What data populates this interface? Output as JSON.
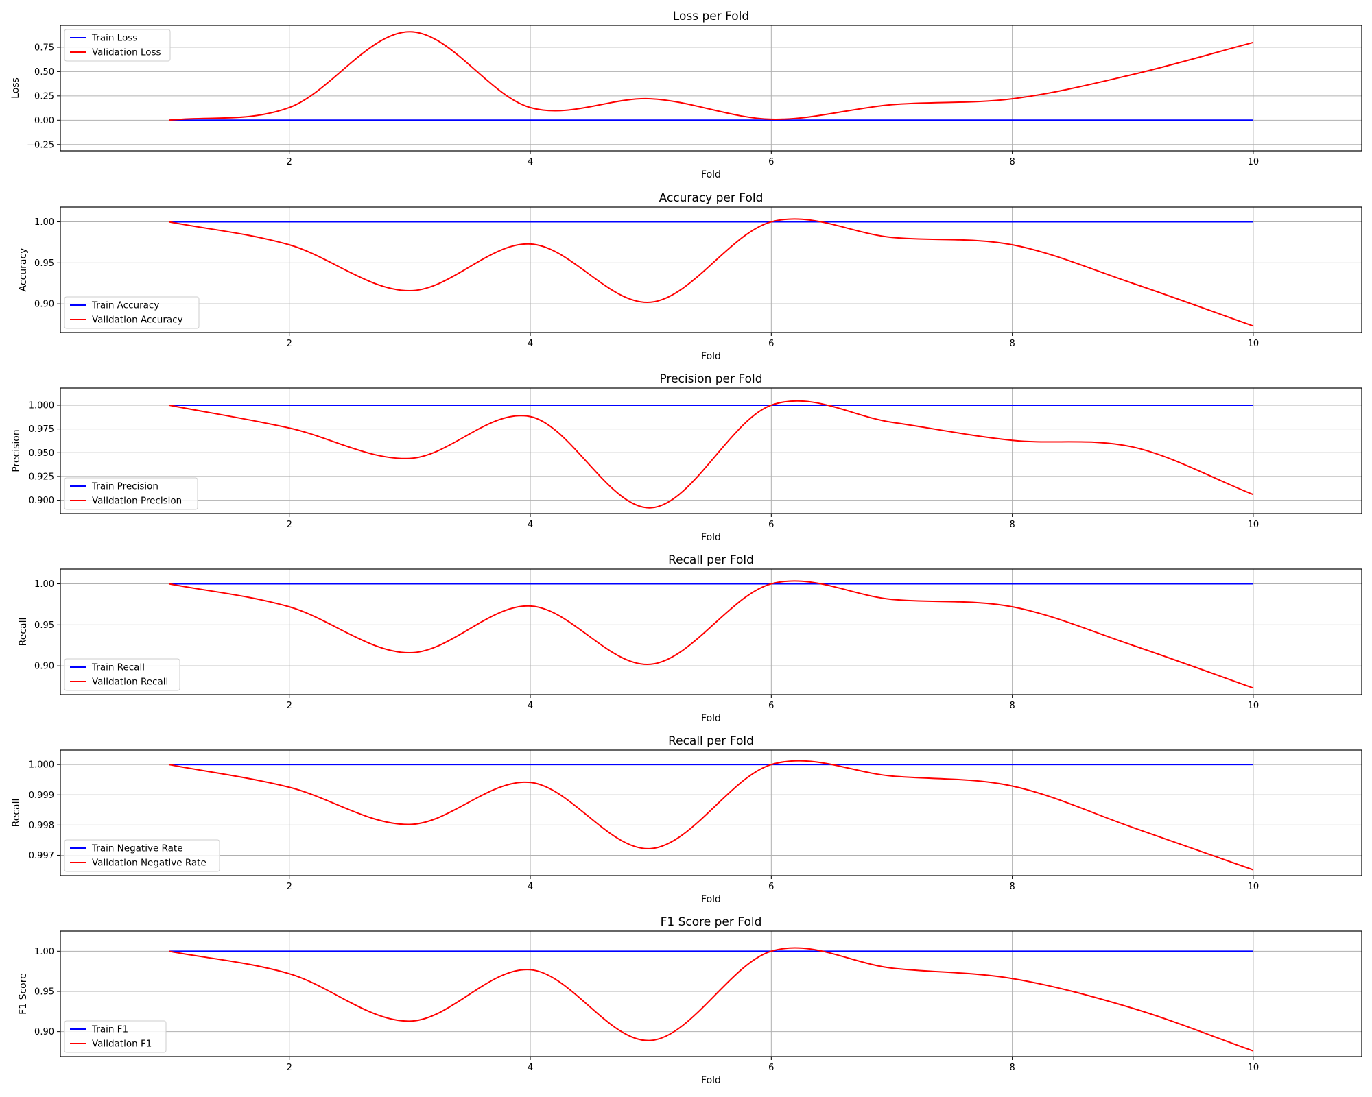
{
  "figure": {
    "colors": {
      "train": "#0000ff",
      "validation": "#ff0000",
      "grid": "#b0b0b0",
      "frame": "#000000"
    }
  },
  "chart_data": [
    {
      "type": "line",
      "title": "Loss per Fold",
      "xlabel": "Fold",
      "ylabel": "Loss",
      "xlim": [
        0.1,
        10.9
      ],
      "ylim": [
        -0.315,
        0.975
      ],
      "xticks": [
        2,
        4,
        6,
        8,
        10
      ],
      "xtick_labels": [
        "2",
        "4",
        "6",
        "8",
        "10"
      ],
      "yticks": [
        -0.25,
        0,
        0.25,
        0.5,
        0.75
      ],
      "ytick_labels": [
        "−0.25",
        "0.00",
        "0.25",
        "0.50",
        "0.75"
      ],
      "grid": true,
      "legend_position": "upper left",
      "x": [
        1,
        2,
        3,
        4,
        5,
        6,
        7,
        8,
        9,
        10
      ],
      "series": [
        {
          "name": "Train Loss",
          "color": "#0000ff",
          "values": [
            0,
            0,
            0,
            0,
            0,
            0,
            0,
            0,
            0,
            0
          ]
        },
        {
          "name": "Validation Loss",
          "color": "#ff0000",
          "values": [
            0.0,
            0.13,
            0.91,
            0.13,
            0.22,
            0.01,
            0.16,
            0.22,
            0.47,
            0.8
          ]
        }
      ]
    },
    {
      "type": "line",
      "title": "Accuracy per Fold",
      "xlabel": "Fold",
      "ylabel": "Accuracy",
      "xlim": [
        0.1,
        10.9
      ],
      "ylim": [
        0.865,
        1.018
      ],
      "xticks": [
        2,
        4,
        6,
        8,
        10
      ],
      "xtick_labels": [
        "2",
        "4",
        "6",
        "8",
        "10"
      ],
      "yticks": [
        0.9,
        0.95,
        1.0
      ],
      "ytick_labels": [
        "0.90",
        "0.95",
        "1.00"
      ],
      "grid": true,
      "legend_position": "lower left",
      "x": [
        1,
        2,
        3,
        4,
        5,
        6,
        7,
        8,
        9,
        10
      ],
      "series": [
        {
          "name": "Train Accuracy",
          "color": "#0000ff",
          "values": [
            1,
            1,
            1,
            1,
            1,
            1,
            1,
            1,
            1,
            1
          ]
        },
        {
          "name": "Validation Accuracy",
          "color": "#ff0000",
          "values": [
            1.0,
            0.972,
            0.916,
            0.973,
            0.902,
            1.0,
            0.981,
            0.972,
            0.925,
            0.873
          ]
        }
      ]
    },
    {
      "type": "line",
      "title": "Precision per Fold",
      "xlabel": "Fold",
      "ylabel": "Precision",
      "xlim": [
        0.1,
        10.9
      ],
      "ylim": [
        0.886,
        1.018
      ],
      "xticks": [
        2,
        4,
        6,
        8,
        10
      ],
      "xtick_labels": [
        "2",
        "4",
        "6",
        "8",
        "10"
      ],
      "yticks": [
        0.9,
        0.925,
        0.95,
        0.975,
        1.0
      ],
      "ytick_labels": [
        "0.900",
        "0.925",
        "0.950",
        "0.975",
        "1.000"
      ],
      "grid": true,
      "legend_position": "lower left",
      "x": [
        1,
        2,
        3,
        4,
        5,
        6,
        7,
        8,
        9,
        10
      ],
      "series": [
        {
          "name": "Train Precision",
          "color": "#0000ff",
          "values": [
            1,
            1,
            1,
            1,
            1,
            1,
            1,
            1,
            1,
            1
          ]
        },
        {
          "name": "Validation Precision",
          "color": "#ff0000",
          "values": [
            1.0,
            0.976,
            0.944,
            0.988,
            0.892,
            1.0,
            0.982,
            0.963,
            0.956,
            0.906
          ]
        }
      ]
    },
    {
      "type": "line",
      "title": "Recall per Fold",
      "xlabel": "Fold",
      "ylabel": "Recall",
      "xlim": [
        0.1,
        10.9
      ],
      "ylim": [
        0.865,
        1.018
      ],
      "xticks": [
        2,
        4,
        6,
        8,
        10
      ],
      "xtick_labels": [
        "2",
        "4",
        "6",
        "8",
        "10"
      ],
      "yticks": [
        0.9,
        0.95,
        1.0
      ],
      "ytick_labels": [
        "0.90",
        "0.95",
        "1.00"
      ],
      "grid": true,
      "legend_position": "lower left",
      "x": [
        1,
        2,
        3,
        4,
        5,
        6,
        7,
        8,
        9,
        10
      ],
      "series": [
        {
          "name": "Train Recall",
          "color": "#0000ff",
          "values": [
            1,
            1,
            1,
            1,
            1,
            1,
            1,
            1,
            1,
            1
          ]
        },
        {
          "name": "Validation Recall",
          "color": "#ff0000",
          "values": [
            1.0,
            0.972,
            0.916,
            0.973,
            0.902,
            1.0,
            0.981,
            0.972,
            0.925,
            0.873
          ]
        }
      ]
    },
    {
      "type": "line",
      "title": "Recall per Fold",
      "xlabel": "Fold",
      "ylabel": "Recall",
      "xlim": [
        0.1,
        10.9
      ],
      "ylim": [
        0.99633,
        1.00048
      ],
      "xticks": [
        2,
        4,
        6,
        8,
        10
      ],
      "xtick_labels": [
        "2",
        "4",
        "6",
        "8",
        "10"
      ],
      "yticks": [
        0.997,
        0.998,
        0.999,
        1.0
      ],
      "ytick_labels": [
        "0.997",
        "0.998",
        "0.999",
        "1.000"
      ],
      "grid": true,
      "legend_position": "lower left",
      "x": [
        1,
        2,
        3,
        4,
        5,
        6,
        7,
        8,
        9,
        10
      ],
      "series": [
        {
          "name": "Train Negative Rate",
          "color": "#0000ff",
          "values": [
            1,
            1,
            1,
            1,
            1,
            1,
            1,
            1,
            1,
            1
          ]
        },
        {
          "name": "Validation Negative Rate",
          "color": "#ff0000",
          "values": [
            1.0,
            0.99925,
            0.99802,
            0.99941,
            0.99722,
            1.0,
            0.99962,
            0.99929,
            0.99792,
            0.99652
          ]
        }
      ]
    },
    {
      "type": "line",
      "title": "F1 Score per Fold",
      "xlabel": "Fold",
      "ylabel": "F1 Score",
      "xlim": [
        0.1,
        10.9
      ],
      "ylim": [
        0.869,
        1.025
      ],
      "xticks": [
        2,
        4,
        6,
        8,
        10
      ],
      "xtick_labels": [
        "2",
        "4",
        "6",
        "8",
        "10"
      ],
      "yticks": [
        0.9,
        0.95,
        1.0
      ],
      "ytick_labels": [
        "0.90",
        "0.95",
        "1.00"
      ],
      "grid": true,
      "legend_position": "lower left",
      "x": [
        1,
        2,
        3,
        4,
        5,
        6,
        7,
        8,
        9,
        10
      ],
      "series": [
        {
          "name": "Train F1",
          "color": "#0000ff",
          "values": [
            1,
            1,
            1,
            1,
            1,
            1,
            1,
            1,
            1,
            1
          ]
        },
        {
          "name": "Validation F1",
          "color": "#ff0000",
          "values": [
            1.0,
            0.972,
            0.913,
            0.977,
            0.889,
            1.0,
            0.979,
            0.966,
            0.929,
            0.876
          ]
        }
      ]
    }
  ]
}
